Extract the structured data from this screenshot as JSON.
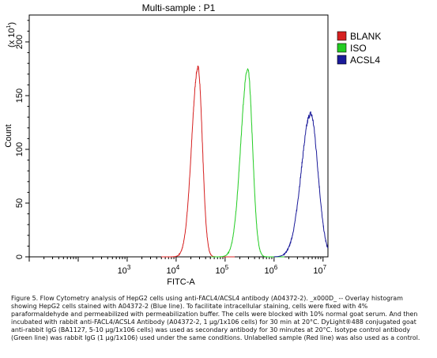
{
  "chart_data": {
    "type": "line",
    "title": "Multi-sample : P1",
    "xlabel": "FITC-A",
    "ylabel": "Count",
    "y_multiplier_label": "(x 10",
    "y_multiplier_exp": "1",
    "x_scale": "log",
    "xlim": [
      10,
      12600000
    ],
    "ylim": [
      0,
      225
    ],
    "y_ticks": [
      0,
      50,
      100,
      150,
      200
    ],
    "x_ticks": [
      {
        "value": 1000,
        "base": "10",
        "exp": "3"
      },
      {
        "value": 10000,
        "base": "10",
        "exp": "4"
      },
      {
        "value": 100000,
        "base": "10",
        "exp": "5"
      },
      {
        "value": 1000000,
        "base": "10",
        "exp": "6"
      },
      {
        "value": 10000000,
        "base": "10",
        "exp": "7"
      }
    ],
    "legend_position": "right",
    "series": [
      {
        "name": "BLANK",
        "color": "#d62020",
        "peak_x": 28000,
        "peak_y": 176,
        "width": 0.1,
        "skew": 0.3,
        "noise": 3
      },
      {
        "name": "ISO",
        "color": "#22cc22",
        "peak_x": 290000,
        "peak_y": 174,
        "width": 0.11,
        "skew": 0.3,
        "noise": 3
      },
      {
        "name": "ACSL4",
        "color": "#1a1a9a",
        "peak_x": 5600000,
        "peak_y": 133,
        "width": 0.16,
        "skew": 0.2,
        "noise": 4
      }
    ]
  },
  "caption": "Figure 5. Flow Cytometry analysis of HepG2 cells using anti-FACL4/ACSL4 antibody (A04372-2). _x000D_ -- Overlay histogram showing HepG2 cells stained with A04372-2 (Blue line). To facilitate intracellular staining, cells were fixed with 4% paraformaldehyde and permeabilized with permeabilization buffer. The cells were blocked with 10% normal goat serum. And then incubated with rabbit anti-FACL4/ACSL4 Antibody (A04372-2, 1 μg/1x106 cells) for 30 min at 20°C. DyLight®488 conjugated goat anti-rabbit IgG (BA1127, 5-10 μg/1x106 cells) was used as secondary antibody for 30 minutes at 20°C. Isotype control antibody (Green line) was rabbit IgG (1 μg/1x106) used under the same conditions. Unlabelled sample (Red line) was also used as a control."
}
